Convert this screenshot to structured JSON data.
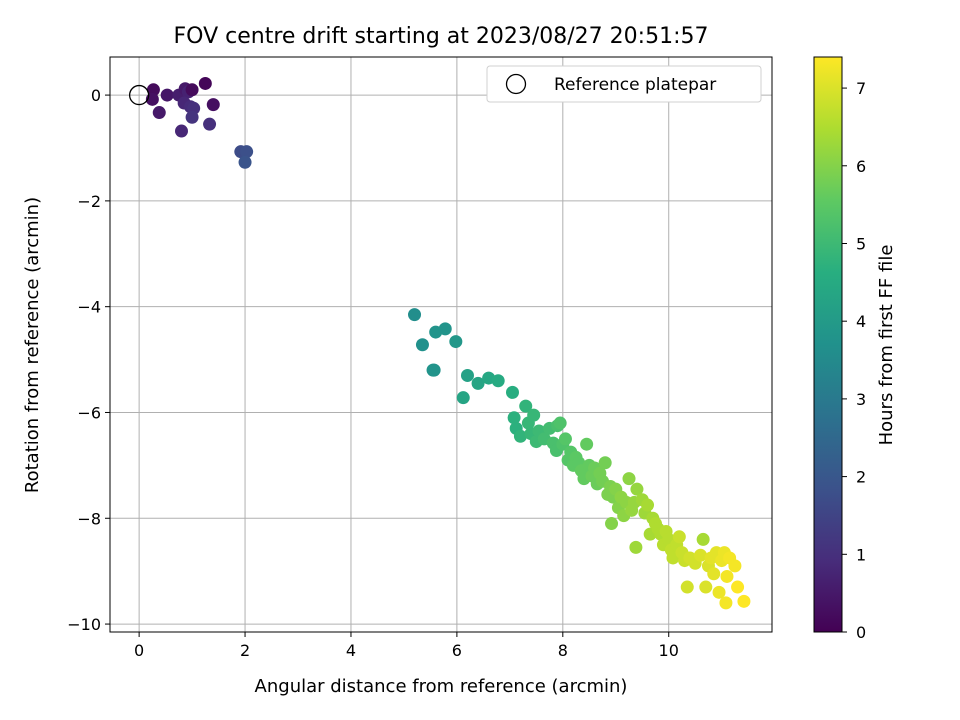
{
  "chart_data": {
    "type": "scatter",
    "title": "FOV centre drift starting at 2023/08/27 20:51:57",
    "xlabel": "Angular distance from reference (arcmin)",
    "ylabel": "Rotation from reference (arcmin)",
    "xlim": [
      -0.55,
      11.95
    ],
    "ylim": [
      -10.15,
      0.72
    ],
    "xticks": [
      0,
      2,
      4,
      6,
      8,
      10
    ],
    "yticks": [
      0,
      -2,
      -4,
      -6,
      -8,
      -10
    ],
    "xtick_labels": [
      "0",
      "2",
      "4",
      "6",
      "8",
      "10"
    ],
    "ytick_labels": [
      "0",
      "−2",
      "−4",
      "−6",
      "−8",
      "−10"
    ],
    "grid": true,
    "legend": {
      "placement": "upper-right",
      "entries": [
        {
          "label": "Reference platepar",
          "marker": "open-circle"
        }
      ]
    },
    "reference_point": {
      "x": 0,
      "y": 0
    },
    "colorbar": {
      "label": "Hours from first FF file",
      "colormap": "viridis",
      "range": [
        0,
        7.4
      ],
      "ticks": [
        0,
        1,
        2,
        3,
        4,
        5,
        6,
        7
      ],
      "tick_labels": [
        "0",
        "1",
        "2",
        "3",
        "4",
        "5",
        "6",
        "7"
      ]
    },
    "points": [
      {
        "x": 0.27,
        "y": 0.1,
        "c": 0.2
      },
      {
        "x": 0.25,
        "y": -0.08,
        "c": 0.3
      },
      {
        "x": 0.38,
        "y": -0.33,
        "c": 0.5
      },
      {
        "x": 0.53,
        "y": 0.0,
        "c": 0.45
      },
      {
        "x": 0.75,
        "y": 0.0,
        "c": 0.6
      },
      {
        "x": 0.87,
        "y": 0.12,
        "c": 0.5
      },
      {
        "x": 0.93,
        "y": 0.06,
        "c": 0.7
      },
      {
        "x": 1.0,
        "y": 0.1,
        "c": 0.2
      },
      {
        "x": 1.25,
        "y": 0.22,
        "c": 0.1
      },
      {
        "x": 0.85,
        "y": -0.15,
        "c": 0.8
      },
      {
        "x": 0.97,
        "y": -0.22,
        "c": 0.9
      },
      {
        "x": 1.03,
        "y": -0.25,
        "c": 1.0
      },
      {
        "x": 1.0,
        "y": -0.42,
        "c": 1.1
      },
      {
        "x": 0.8,
        "y": -0.68,
        "c": 0.8
      },
      {
        "x": 1.33,
        "y": -0.55,
        "c": 1.0
      },
      {
        "x": 1.4,
        "y": -0.18,
        "c": 0.3
      },
      {
        "x": 1.92,
        "y": -1.07,
        "c": 1.7
      },
      {
        "x": 2.03,
        "y": -1.07,
        "c": 1.8
      },
      {
        "x": 2.0,
        "y": -1.27,
        "c": 1.9
      },
      {
        "x": 5.2,
        "y": -4.15,
        "c": 3.6
      },
      {
        "x": 5.35,
        "y": -4.72,
        "c": 3.7
      },
      {
        "x": 5.6,
        "y": -4.48,
        "c": 3.8
      },
      {
        "x": 5.78,
        "y": -4.42,
        "c": 3.8
      },
      {
        "x": 5.98,
        "y": -4.66,
        "c": 3.9
      },
      {
        "x": 5.55,
        "y": -5.2,
        "c": 3.8
      },
      {
        "x": 5.57,
        "y": -5.2,
        "c": 3.8
      },
      {
        "x": 6.2,
        "y": -5.3,
        "c": 4.2
      },
      {
        "x": 6.12,
        "y": -5.72,
        "c": 4.3
      },
      {
        "x": 6.4,
        "y": -5.45,
        "c": 4.3
      },
      {
        "x": 6.6,
        "y": -5.35,
        "c": 4.4
      },
      {
        "x": 6.78,
        "y": -5.4,
        "c": 4.5
      },
      {
        "x": 7.05,
        "y": -5.62,
        "c": 4.6
      },
      {
        "x": 7.08,
        "y": -6.1,
        "c": 4.7
      },
      {
        "x": 7.12,
        "y": -6.3,
        "c": 4.7
      },
      {
        "x": 7.2,
        "y": -6.45,
        "c": 4.8
      },
      {
        "x": 7.3,
        "y": -5.88,
        "c": 4.8
      },
      {
        "x": 7.35,
        "y": -6.2,
        "c": 4.9
      },
      {
        "x": 7.4,
        "y": -6.4,
        "c": 4.9
      },
      {
        "x": 7.5,
        "y": -6.55,
        "c": 5.0
      },
      {
        "x": 7.55,
        "y": -6.35,
        "c": 5.0
      },
      {
        "x": 7.45,
        "y": -6.05,
        "c": 4.9
      },
      {
        "x": 7.65,
        "y": -6.5,
        "c": 5.1
      },
      {
        "x": 7.75,
        "y": -6.3,
        "c": 5.1
      },
      {
        "x": 7.82,
        "y": -6.58,
        "c": 5.2
      },
      {
        "x": 7.88,
        "y": -6.72,
        "c": 5.2
      },
      {
        "x": 7.9,
        "y": -6.25,
        "c": 5.2
      },
      {
        "x": 7.95,
        "y": -6.2,
        "c": 5.3
      },
      {
        "x": 8.0,
        "y": -6.6,
        "c": 5.3
      },
      {
        "x": 8.05,
        "y": -6.5,
        "c": 5.4
      },
      {
        "x": 8.1,
        "y": -6.9,
        "c": 5.4
      },
      {
        "x": 8.15,
        "y": -6.75,
        "c": 5.4
      },
      {
        "x": 8.2,
        "y": -7.0,
        "c": 5.5
      },
      {
        "x": 8.25,
        "y": -6.85,
        "c": 5.5
      },
      {
        "x": 8.3,
        "y": -6.95,
        "c": 5.5
      },
      {
        "x": 8.35,
        "y": -7.1,
        "c": 5.6
      },
      {
        "x": 8.4,
        "y": -7.25,
        "c": 5.6
      },
      {
        "x": 8.45,
        "y": -6.6,
        "c": 5.6
      },
      {
        "x": 8.5,
        "y": -7.0,
        "c": 5.6
      },
      {
        "x": 8.55,
        "y": -7.2,
        "c": 5.7
      },
      {
        "x": 8.6,
        "y": -7.05,
        "c": 5.7
      },
      {
        "x": 8.65,
        "y": -7.35,
        "c": 5.7
      },
      {
        "x": 8.7,
        "y": -7.15,
        "c": 5.8
      },
      {
        "x": 8.75,
        "y": -7.3,
        "c": 5.8
      },
      {
        "x": 8.8,
        "y": -6.95,
        "c": 5.8
      },
      {
        "x": 8.85,
        "y": -7.55,
        "c": 5.9
      },
      {
        "x": 8.9,
        "y": -7.4,
        "c": 5.9
      },
      {
        "x": 8.92,
        "y": -8.1,
        "c": 6.0
      },
      {
        "x": 8.95,
        "y": -7.6,
        "c": 5.9
      },
      {
        "x": 9.0,
        "y": -7.45,
        "c": 6.0
      },
      {
        "x": 9.05,
        "y": -7.8,
        "c": 6.0
      },
      {
        "x": 9.1,
        "y": -7.6,
        "c": 6.1
      },
      {
        "x": 9.15,
        "y": -7.95,
        "c": 6.1
      },
      {
        "x": 9.2,
        "y": -7.7,
        "c": 6.1
      },
      {
        "x": 9.25,
        "y": -7.25,
        "c": 6.1
      },
      {
        "x": 9.3,
        "y": -7.85,
        "c": 6.2
      },
      {
        "x": 9.35,
        "y": -7.7,
        "c": 6.2
      },
      {
        "x": 9.4,
        "y": -7.45,
        "c": 6.2
      },
      {
        "x": 9.38,
        "y": -8.55,
        "c": 6.3
      },
      {
        "x": 9.5,
        "y": -7.65,
        "c": 6.3
      },
      {
        "x": 9.55,
        "y": -7.9,
        "c": 6.3
      },
      {
        "x": 9.6,
        "y": -7.75,
        "c": 6.4
      },
      {
        "x": 9.65,
        "y": -8.3,
        "c": 6.4
      },
      {
        "x": 9.7,
        "y": -8.0,
        "c": 6.4
      },
      {
        "x": 9.75,
        "y": -8.1,
        "c": 6.5
      },
      {
        "x": 9.8,
        "y": -8.2,
        "c": 6.5
      },
      {
        "x": 9.85,
        "y": -8.3,
        "c": 6.5
      },
      {
        "x": 9.9,
        "y": -8.5,
        "c": 6.6
      },
      {
        "x": 9.95,
        "y": -8.25,
        "c": 6.6
      },
      {
        "x": 10.0,
        "y": -8.4,
        "c": 6.6
      },
      {
        "x": 10.05,
        "y": -8.6,
        "c": 6.7
      },
      {
        "x": 10.08,
        "y": -8.75,
        "c": 6.7
      },
      {
        "x": 10.15,
        "y": -8.5,
        "c": 6.7
      },
      {
        "x": 10.2,
        "y": -8.35,
        "c": 6.8
      },
      {
        "x": 10.25,
        "y": -8.65,
        "c": 6.8
      },
      {
        "x": 10.3,
        "y": -8.8,
        "c": 6.8
      },
      {
        "x": 10.35,
        "y": -9.3,
        "c": 6.9
      },
      {
        "x": 10.4,
        "y": -8.75,
        "c": 6.9
      },
      {
        "x": 10.5,
        "y": -8.85,
        "c": 6.9
      },
      {
        "x": 10.6,
        "y": -8.7,
        "c": 7.0
      },
      {
        "x": 10.65,
        "y": -8.4,
        "c": 6.4
      },
      {
        "x": 10.7,
        "y": -9.3,
        "c": 7.0
      },
      {
        "x": 10.75,
        "y": -8.9,
        "c": 7.0
      },
      {
        "x": 10.8,
        "y": -8.75,
        "c": 7.1
      },
      {
        "x": 10.85,
        "y": -9.05,
        "c": 7.1
      },
      {
        "x": 10.9,
        "y": -8.65,
        "c": 7.1
      },
      {
        "x": 10.95,
        "y": -9.4,
        "c": 7.2
      },
      {
        "x": 11.0,
        "y": -8.8,
        "c": 7.2
      },
      {
        "x": 11.05,
        "y": -8.65,
        "c": 7.2
      },
      {
        "x": 11.1,
        "y": -9.1,
        "c": 7.3
      },
      {
        "x": 11.15,
        "y": -8.75,
        "c": 7.3
      },
      {
        "x": 11.08,
        "y": -9.6,
        "c": 7.3
      },
      {
        "x": 11.25,
        "y": -8.9,
        "c": 7.3
      },
      {
        "x": 11.3,
        "y": -9.3,
        "c": 7.4
      },
      {
        "x": 11.42,
        "y": -9.57,
        "c": 7.4
      }
    ]
  }
}
